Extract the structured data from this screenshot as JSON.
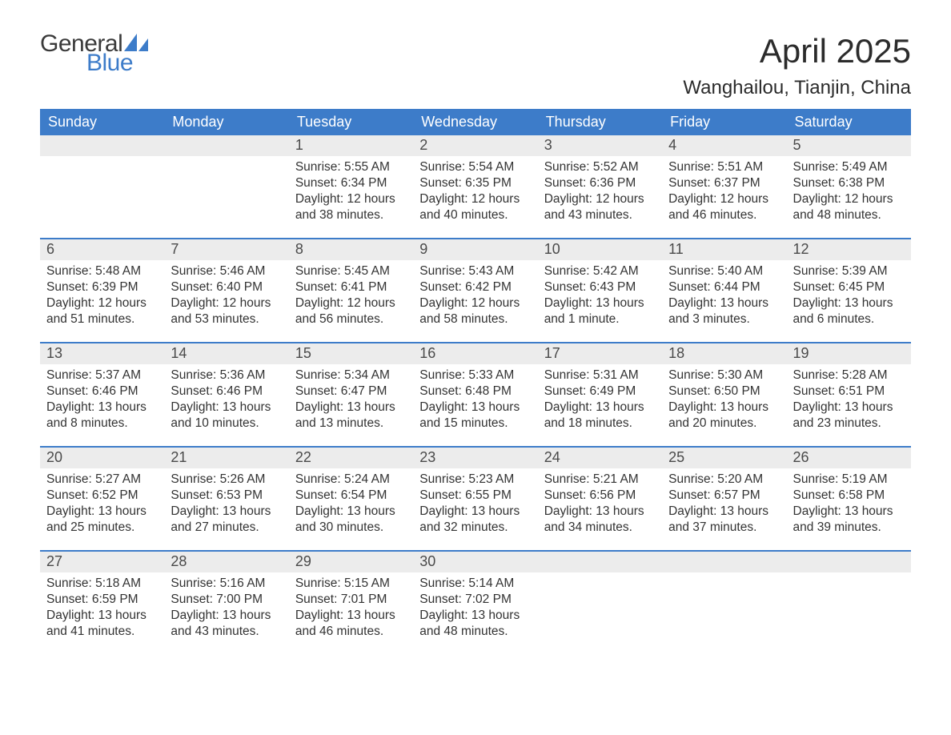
{
  "logo": {
    "word1": "General",
    "word2": "Blue",
    "word1_color": "#3a3a3a",
    "word2_color": "#3d7cc9",
    "icon_color": "#3d7cc9"
  },
  "title": "April 2025",
  "location": "Wanghailou, Tianjin, China",
  "colors": {
    "header_bg": "#3d7cc9",
    "header_text": "#ffffff",
    "daynum_bg": "#ececec",
    "week_border": "#3d7cc9",
    "body_text": "#333333",
    "page_bg": "#ffffff"
  },
  "typography": {
    "title_fontsize": 42,
    "location_fontsize": 24,
    "weekday_fontsize": 18,
    "daynum_fontsize": 18,
    "body_fontsize": 15.5,
    "logo_fontsize": 30
  },
  "weekdays": [
    "Sunday",
    "Monday",
    "Tuesday",
    "Wednesday",
    "Thursday",
    "Friday",
    "Saturday"
  ],
  "weeks": [
    [
      {
        "n": "",
        "sunrise": "",
        "sunset": "",
        "daylight": ""
      },
      {
        "n": "",
        "sunrise": "",
        "sunset": "",
        "daylight": ""
      },
      {
        "n": "1",
        "sunrise": "Sunrise: 5:55 AM",
        "sunset": "Sunset: 6:34 PM",
        "daylight": "Daylight: 12 hours and 38 minutes."
      },
      {
        "n": "2",
        "sunrise": "Sunrise: 5:54 AM",
        "sunset": "Sunset: 6:35 PM",
        "daylight": "Daylight: 12 hours and 40 minutes."
      },
      {
        "n": "3",
        "sunrise": "Sunrise: 5:52 AM",
        "sunset": "Sunset: 6:36 PM",
        "daylight": "Daylight: 12 hours and 43 minutes."
      },
      {
        "n": "4",
        "sunrise": "Sunrise: 5:51 AM",
        "sunset": "Sunset: 6:37 PM",
        "daylight": "Daylight: 12 hours and 46 minutes."
      },
      {
        "n": "5",
        "sunrise": "Sunrise: 5:49 AM",
        "sunset": "Sunset: 6:38 PM",
        "daylight": "Daylight: 12 hours and 48 minutes."
      }
    ],
    [
      {
        "n": "6",
        "sunrise": "Sunrise: 5:48 AM",
        "sunset": "Sunset: 6:39 PM",
        "daylight": "Daylight: 12 hours and 51 minutes."
      },
      {
        "n": "7",
        "sunrise": "Sunrise: 5:46 AM",
        "sunset": "Sunset: 6:40 PM",
        "daylight": "Daylight: 12 hours and 53 minutes."
      },
      {
        "n": "8",
        "sunrise": "Sunrise: 5:45 AM",
        "sunset": "Sunset: 6:41 PM",
        "daylight": "Daylight: 12 hours and 56 minutes."
      },
      {
        "n": "9",
        "sunrise": "Sunrise: 5:43 AM",
        "sunset": "Sunset: 6:42 PM",
        "daylight": "Daylight: 12 hours and 58 minutes."
      },
      {
        "n": "10",
        "sunrise": "Sunrise: 5:42 AM",
        "sunset": "Sunset: 6:43 PM",
        "daylight": "Daylight: 13 hours and 1 minute."
      },
      {
        "n": "11",
        "sunrise": "Sunrise: 5:40 AM",
        "sunset": "Sunset: 6:44 PM",
        "daylight": "Daylight: 13 hours and 3 minutes."
      },
      {
        "n": "12",
        "sunrise": "Sunrise: 5:39 AM",
        "sunset": "Sunset: 6:45 PM",
        "daylight": "Daylight: 13 hours and 6 minutes."
      }
    ],
    [
      {
        "n": "13",
        "sunrise": "Sunrise: 5:37 AM",
        "sunset": "Sunset: 6:46 PM",
        "daylight": "Daylight: 13 hours and 8 minutes."
      },
      {
        "n": "14",
        "sunrise": "Sunrise: 5:36 AM",
        "sunset": "Sunset: 6:46 PM",
        "daylight": "Daylight: 13 hours and 10 minutes."
      },
      {
        "n": "15",
        "sunrise": "Sunrise: 5:34 AM",
        "sunset": "Sunset: 6:47 PM",
        "daylight": "Daylight: 13 hours and 13 minutes."
      },
      {
        "n": "16",
        "sunrise": "Sunrise: 5:33 AM",
        "sunset": "Sunset: 6:48 PM",
        "daylight": "Daylight: 13 hours and 15 minutes."
      },
      {
        "n": "17",
        "sunrise": "Sunrise: 5:31 AM",
        "sunset": "Sunset: 6:49 PM",
        "daylight": "Daylight: 13 hours and 18 minutes."
      },
      {
        "n": "18",
        "sunrise": "Sunrise: 5:30 AM",
        "sunset": "Sunset: 6:50 PM",
        "daylight": "Daylight: 13 hours and 20 minutes."
      },
      {
        "n": "19",
        "sunrise": "Sunrise: 5:28 AM",
        "sunset": "Sunset: 6:51 PM",
        "daylight": "Daylight: 13 hours and 23 minutes."
      }
    ],
    [
      {
        "n": "20",
        "sunrise": "Sunrise: 5:27 AM",
        "sunset": "Sunset: 6:52 PM",
        "daylight": "Daylight: 13 hours and 25 minutes."
      },
      {
        "n": "21",
        "sunrise": "Sunrise: 5:26 AM",
        "sunset": "Sunset: 6:53 PM",
        "daylight": "Daylight: 13 hours and 27 minutes."
      },
      {
        "n": "22",
        "sunrise": "Sunrise: 5:24 AM",
        "sunset": "Sunset: 6:54 PM",
        "daylight": "Daylight: 13 hours and 30 minutes."
      },
      {
        "n": "23",
        "sunrise": "Sunrise: 5:23 AM",
        "sunset": "Sunset: 6:55 PM",
        "daylight": "Daylight: 13 hours and 32 minutes."
      },
      {
        "n": "24",
        "sunrise": "Sunrise: 5:21 AM",
        "sunset": "Sunset: 6:56 PM",
        "daylight": "Daylight: 13 hours and 34 minutes."
      },
      {
        "n": "25",
        "sunrise": "Sunrise: 5:20 AM",
        "sunset": "Sunset: 6:57 PM",
        "daylight": "Daylight: 13 hours and 37 minutes."
      },
      {
        "n": "26",
        "sunrise": "Sunrise: 5:19 AM",
        "sunset": "Sunset: 6:58 PM",
        "daylight": "Daylight: 13 hours and 39 minutes."
      }
    ],
    [
      {
        "n": "27",
        "sunrise": "Sunrise: 5:18 AM",
        "sunset": "Sunset: 6:59 PM",
        "daylight": "Daylight: 13 hours and 41 minutes."
      },
      {
        "n": "28",
        "sunrise": "Sunrise: 5:16 AM",
        "sunset": "Sunset: 7:00 PM",
        "daylight": "Daylight: 13 hours and 43 minutes."
      },
      {
        "n": "29",
        "sunrise": "Sunrise: 5:15 AM",
        "sunset": "Sunset: 7:01 PM",
        "daylight": "Daylight: 13 hours and 46 minutes."
      },
      {
        "n": "30",
        "sunrise": "Sunrise: 5:14 AM",
        "sunset": "Sunset: 7:02 PM",
        "daylight": "Daylight: 13 hours and 48 minutes."
      },
      {
        "n": "",
        "sunrise": "",
        "sunset": "",
        "daylight": ""
      },
      {
        "n": "",
        "sunrise": "",
        "sunset": "",
        "daylight": ""
      },
      {
        "n": "",
        "sunrise": "",
        "sunset": "",
        "daylight": ""
      }
    ]
  ]
}
